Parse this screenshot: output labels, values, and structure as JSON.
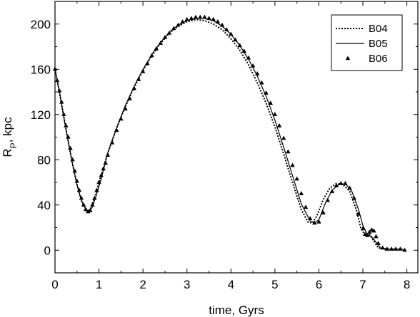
{
  "chart_data": {
    "type": "line",
    "title": "",
    "xlabel": "time, Gyrs",
    "ylabel_main": "R",
    "ylabel_sub": "P",
    "ylabel_rest": ", kpc",
    "xlim": [
      0,
      8.25
    ],
    "ylim": [
      -20,
      220
    ],
    "x_ticks": [
      0,
      1,
      2,
      3,
      4,
      5,
      6,
      7,
      8
    ],
    "y_ticks": [
      0,
      40,
      80,
      120,
      160,
      200
    ],
    "grid": false,
    "legend_position": "top-right",
    "series": [
      {
        "name": "B04",
        "style": "dotted",
        "color": "#000000",
        "points": [
          [
            0,
            160
          ],
          [
            0.1,
            140
          ],
          [
            0.2,
            118
          ],
          [
            0.3,
            96
          ],
          [
            0.4,
            76
          ],
          [
            0.5,
            58
          ],
          [
            0.6,
            44
          ],
          [
            0.7,
            36
          ],
          [
            0.75,
            34
          ],
          [
            0.8,
            36
          ],
          [
            0.9,
            46
          ],
          [
            1.0,
            60
          ],
          [
            1.2,
            86
          ],
          [
            1.4,
            108
          ],
          [
            1.6,
            127
          ],
          [
            1.8,
            144
          ],
          [
            2.0,
            159
          ],
          [
            2.2,
            172
          ],
          [
            2.4,
            183
          ],
          [
            2.6,
            192
          ],
          [
            2.8,
            198
          ],
          [
            3.0,
            202
          ],
          [
            3.2,
            204
          ],
          [
            3.4,
            203
          ],
          [
            3.6,
            200
          ],
          [
            3.8,
            195
          ],
          [
            4.0,
            187
          ],
          [
            4.2,
            177
          ],
          [
            4.4,
            164
          ],
          [
            4.6,
            148
          ],
          [
            4.8,
            130
          ],
          [
            5.0,
            109
          ],
          [
            5.2,
            85
          ],
          [
            5.4,
            60
          ],
          [
            5.6,
            36
          ],
          [
            5.75,
            25
          ],
          [
            5.85,
            24
          ],
          [
            5.95,
            30
          ],
          [
            6.1,
            45
          ],
          [
            6.25,
            55
          ],
          [
            6.4,
            59
          ],
          [
            6.55,
            58
          ],
          [
            6.7,
            52
          ],
          [
            6.85,
            36
          ],
          [
            6.95,
            20
          ],
          [
            7.05,
            13
          ],
          [
            7.15,
            14
          ],
          [
            7.25,
            8
          ],
          [
            7.35,
            2
          ],
          [
            7.5,
            1
          ],
          [
            7.7,
            1
          ],
          [
            7.9,
            1
          ]
        ]
      },
      {
        "name": "B05",
        "style": "solid",
        "color": "#000000",
        "points": [
          [
            0,
            160
          ],
          [
            0.1,
            140
          ],
          [
            0.2,
            118
          ],
          [
            0.3,
            96
          ],
          [
            0.4,
            76
          ],
          [
            0.5,
            58
          ],
          [
            0.6,
            44
          ],
          [
            0.7,
            36
          ],
          [
            0.77,
            34
          ],
          [
            0.85,
            38
          ],
          [
            0.95,
            50
          ],
          [
            1.05,
            63
          ],
          [
            1.2,
            86
          ],
          [
            1.4,
            108
          ],
          [
            1.6,
            128
          ],
          [
            1.8,
            145
          ],
          [
            2.0,
            160
          ],
          [
            2.2,
            173
          ],
          [
            2.4,
            184
          ],
          [
            2.6,
            193
          ],
          [
            2.8,
            199
          ],
          [
            3.0,
            203
          ],
          [
            3.2,
            205
          ],
          [
            3.4,
            205
          ],
          [
            3.6,
            203
          ],
          [
            3.8,
            198
          ],
          [
            4.0,
            191
          ],
          [
            4.2,
            181
          ],
          [
            4.4,
            169
          ],
          [
            4.6,
            154
          ],
          [
            4.8,
            136
          ],
          [
            5.0,
            115
          ],
          [
            5.2,
            91
          ],
          [
            5.4,
            66
          ],
          [
            5.6,
            41
          ],
          [
            5.8,
            26
          ],
          [
            5.9,
            24
          ],
          [
            6.0,
            27
          ],
          [
            6.15,
            42
          ],
          [
            6.3,
            53
          ],
          [
            6.45,
            58
          ],
          [
            6.6,
            59
          ],
          [
            6.75,
            52
          ],
          [
            6.9,
            36
          ],
          [
            7.0,
            22
          ],
          [
            7.1,
            14
          ],
          [
            7.2,
            12
          ],
          [
            7.3,
            7
          ],
          [
            7.4,
            2
          ],
          [
            7.6,
            1
          ],
          [
            7.8,
            1
          ],
          [
            7.95,
            0
          ]
        ]
      },
      {
        "name": "B06",
        "style": "triangle",
        "color": "#000000",
        "points": [
          [
            0,
            160
          ],
          [
            0.05,
            150
          ],
          [
            0.1,
            141
          ],
          [
            0.15,
            131
          ],
          [
            0.2,
            120
          ],
          [
            0.25,
            110
          ],
          [
            0.3,
            100
          ],
          [
            0.35,
            90
          ],
          [
            0.4,
            80
          ],
          [
            0.45,
            70
          ],
          [
            0.5,
            61
          ],
          [
            0.55,
            53
          ],
          [
            0.6,
            46
          ],
          [
            0.65,
            40
          ],
          [
            0.7,
            36
          ],
          [
            0.75,
            34
          ],
          [
            0.8,
            35
          ],
          [
            0.85,
            40
          ],
          [
            0.9,
            46
          ],
          [
            0.95,
            53
          ],
          [
            1.0,
            60
          ],
          [
            1.05,
            66
          ],
          [
            1.1,
            72
          ],
          [
            1.15,
            77
          ],
          [
            1.2,
            84
          ],
          [
            1.3,
            95
          ],
          [
            1.4,
            106
          ],
          [
            1.5,
            116
          ],
          [
            1.6,
            125
          ],
          [
            1.7,
            134
          ],
          [
            1.8,
            143
          ],
          [
            1.9,
            151
          ],
          [
            2.0,
            158
          ],
          [
            2.1,
            165
          ],
          [
            2.2,
            172
          ],
          [
            2.3,
            178
          ],
          [
            2.4,
            183
          ],
          [
            2.5,
            188
          ],
          [
            2.6,
            192
          ],
          [
            2.7,
            196
          ],
          [
            2.8,
            199
          ],
          [
            2.9,
            202
          ],
          [
            3.0,
            204
          ],
          [
            3.1,
            205
          ],
          [
            3.2,
            206
          ],
          [
            3.3,
            206
          ],
          [
            3.4,
            206
          ],
          [
            3.5,
            205
          ],
          [
            3.6,
            204
          ],
          [
            3.7,
            202
          ],
          [
            3.8,
            199
          ],
          [
            3.9,
            195
          ],
          [
            4.0,
            191
          ],
          [
            4.1,
            186
          ],
          [
            4.2,
            181
          ],
          [
            4.3,
            176
          ],
          [
            4.4,
            170
          ],
          [
            4.5,
            163
          ],
          [
            4.6,
            156
          ],
          [
            4.7,
            148
          ],
          [
            4.8,
            139
          ],
          [
            4.9,
            130
          ],
          [
            5.0,
            120
          ],
          [
            5.1,
            110
          ],
          [
            5.2,
            99
          ],
          [
            5.3,
            87
          ],
          [
            5.4,
            75
          ],
          [
            5.5,
            63
          ],
          [
            5.6,
            50
          ],
          [
            5.7,
            38
          ],
          [
            5.8,
            28
          ],
          [
            5.9,
            24
          ],
          [
            6.0,
            25
          ],
          [
            6.1,
            33
          ],
          [
            6.2,
            44
          ],
          [
            6.3,
            52
          ],
          [
            6.4,
            57
          ],
          [
            6.5,
            59
          ],
          [
            6.6,
            59
          ],
          [
            6.7,
            55
          ],
          [
            6.8,
            46
          ],
          [
            6.9,
            32
          ],
          [
            7.0,
            19
          ],
          [
            7.05,
            14
          ],
          [
            7.1,
            13
          ],
          [
            7.15,
            16
          ],
          [
            7.2,
            18
          ],
          [
            7.25,
            17
          ],
          [
            7.3,
            12
          ],
          [
            7.35,
            6
          ],
          [
            7.45,
            2
          ],
          [
            7.55,
            1
          ],
          [
            7.65,
            1
          ],
          [
            7.75,
            1
          ],
          [
            7.85,
            1
          ],
          [
            7.95,
            0
          ]
        ]
      }
    ]
  }
}
